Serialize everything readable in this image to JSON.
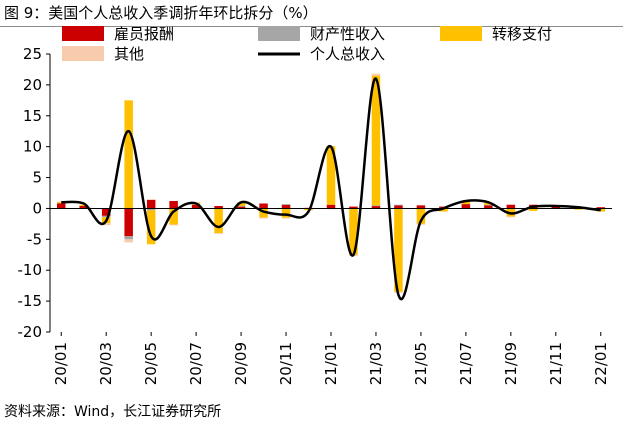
{
  "figure": {
    "title": "图 9：美国个人总收入季调折年环比拆分（%）",
    "source": "资料来源：Wind，长江证券研究所"
  },
  "colors": {
    "compensation": "#cc0000",
    "property_income": "#a6a6a6",
    "transfer_payments": "#ffc000",
    "other": "#f8cbad",
    "total_income": "#000000"
  },
  "chart_data": {
    "type": "bar",
    "stacked": true,
    "categories": [
      "20/01",
      "20/02",
      "20/03",
      "20/04",
      "20/05",
      "20/06",
      "20/07",
      "20/08",
      "20/09",
      "20/10",
      "20/11",
      "20/12",
      "21/01",
      "21/02",
      "21/03",
      "21/04",
      "21/05",
      "21/06",
      "21/07",
      "21/08",
      "21/09",
      "21/10",
      "21/11",
      "21/12",
      "22/01"
    ],
    "x_tick_labels": [
      "20/01",
      "20/03",
      "20/05",
      "20/07",
      "20/09",
      "20/11",
      "21/01",
      "21/03",
      "21/05",
      "21/07",
      "21/09",
      "21/11",
      "22/01"
    ],
    "ylim": [
      -20,
      25
    ],
    "yticks": [
      -20,
      -15,
      -10,
      -5,
      0,
      5,
      10,
      15,
      20,
      25
    ],
    "legend": [
      "雇员报酬",
      "财产性收入",
      "转移支付",
      "其他",
      "个人总收入"
    ],
    "legend_position": "top",
    "grid": false,
    "series": [
      {
        "name": "雇员报酬",
        "type": "bar",
        "values": [
          0.8,
          0.4,
          -1.2,
          -4.5,
          1.4,
          1.2,
          0.6,
          0.4,
          0.3,
          0.8,
          0.6,
          0.1,
          0.6,
          0.3,
          0.4,
          0.5,
          0.5,
          0.3,
          0.7,
          0.5,
          0.6,
          0.6,
          0.4,
          0.2,
          0.2
        ]
      },
      {
        "name": "财产性收入",
        "type": "bar",
        "values": [
          0.0,
          0.0,
          -0.2,
          -0.5,
          -0.3,
          -0.1,
          0.0,
          0.0,
          0.1,
          0.0,
          0.1,
          0.0,
          0.0,
          0.0,
          0.1,
          0.1,
          0.0,
          0.0,
          0.0,
          0.1,
          0.0,
          0.0,
          0.0,
          0.0,
          0.0
        ]
      },
      {
        "name": "转移支付",
        "type": "bar",
        "values": [
          0.2,
          0.2,
          -1.0,
          17.5,
          -5.5,
          -2.5,
          0.3,
          -4.0,
          0.5,
          -1.5,
          -1.5,
          -0.3,
          9.5,
          -7.5,
          21.0,
          -13.5,
          -2.5,
          -0.5,
          0.5,
          0.3,
          -1.3,
          -0.4,
          0.0,
          -0.2,
          -0.5
        ]
      },
      {
        "name": "其他",
        "type": "bar",
        "values": [
          0.1,
          0.0,
          -0.3,
          -0.5,
          0.1,
          -0.1,
          0.1,
          -0.1,
          0.1,
          -0.1,
          -0.1,
          0.0,
          -0.1,
          -0.2,
          0.3,
          -0.1,
          -0.1,
          0.0,
          0.1,
          0.0,
          -0.1,
          0.0,
          0.0,
          0.0,
          0.0
        ]
      },
      {
        "name": "个人总收入",
        "type": "line",
        "values": [
          1.0,
          0.8,
          -2.0,
          12.5,
          -4.5,
          -0.5,
          0.8,
          -3.0,
          1.0,
          -0.5,
          -1.0,
          -0.5,
          10.0,
          -7.5,
          21.0,
          -14.0,
          -2.0,
          0.0,
          1.2,
          1.0,
          -0.8,
          0.3,
          0.4,
          0.2,
          -0.3
        ]
      }
    ]
  }
}
